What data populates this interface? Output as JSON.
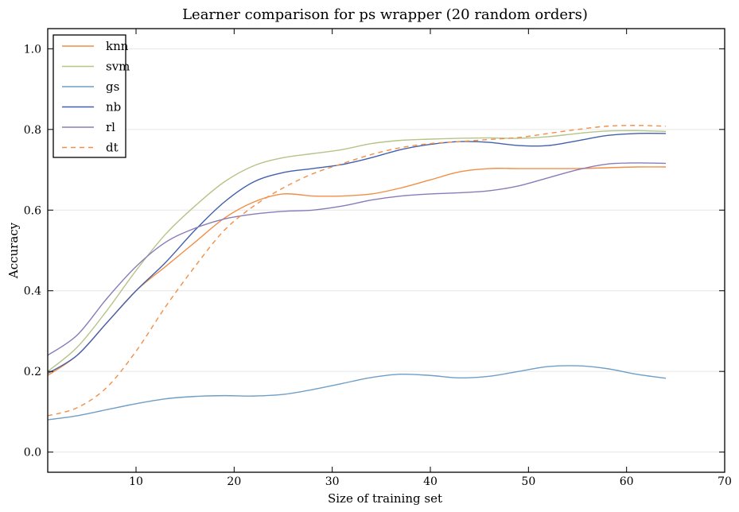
{
  "chart_data": {
    "type": "line",
    "title": "Learner comparison for ps wrapper (20 random orders)",
    "xlabel": "Size of training set",
    "ylabel": "Accuracy",
    "xlim": [
      1,
      70
    ],
    "ylim": [
      -0.05,
      1.05
    ],
    "xticks": [
      10,
      20,
      30,
      40,
      50,
      60,
      70
    ],
    "yticks": [
      0.0,
      0.2,
      0.4,
      0.6,
      0.8,
      1.0
    ],
    "ytick_labels": [
      "0.0",
      "0.2",
      "0.4",
      "0.6",
      "0.8",
      "1.0"
    ],
    "grid": "horizontal",
    "legend_position": "top-left",
    "series": [
      {
        "name": "knn",
        "color": "#f28e45",
        "dash": "solid",
        "x": [
          1,
          4,
          7,
          10,
          13,
          16,
          19,
          22,
          25,
          28,
          31,
          34,
          37,
          40,
          43,
          46,
          49,
          52,
          55,
          58,
          61,
          64
        ],
        "y": [
          0.19,
          0.24,
          0.32,
          0.4,
          0.46,
          0.52,
          0.58,
          0.62,
          0.64,
          0.635,
          0.635,
          0.64,
          0.655,
          0.675,
          0.695,
          0.703,
          0.703,
          0.703,
          0.703,
          0.705,
          0.707,
          0.707
        ]
      },
      {
        "name": "svm",
        "color": "#b5c487",
        "dash": "solid",
        "x": [
          1,
          4,
          7,
          10,
          13,
          16,
          19,
          22,
          25,
          28,
          31,
          34,
          37,
          40,
          43,
          46,
          49,
          52,
          55,
          58,
          61,
          64
        ],
        "y": [
          0.2,
          0.26,
          0.35,
          0.45,
          0.54,
          0.61,
          0.67,
          0.71,
          0.73,
          0.74,
          0.75,
          0.765,
          0.773,
          0.776,
          0.778,
          0.779,
          0.778,
          0.782,
          0.79,
          0.796,
          0.797,
          0.795
        ]
      },
      {
        "name": "gs",
        "color": "#6f9ec6",
        "dash": "solid",
        "x": [
          1,
          4,
          7,
          10,
          13,
          16,
          19,
          22,
          25,
          28,
          31,
          34,
          37,
          40,
          43,
          46,
          49,
          52,
          55,
          58,
          61,
          64
        ],
        "y": [
          0.08,
          0.09,
          0.105,
          0.12,
          0.132,
          0.138,
          0.14,
          0.139,
          0.143,
          0.155,
          0.17,
          0.185,
          0.193,
          0.19,
          0.184,
          0.188,
          0.2,
          0.212,
          0.214,
          0.207,
          0.193,
          0.183
        ]
      },
      {
        "name": "nb",
        "color": "#4160ad",
        "dash": "solid",
        "x": [
          1,
          4,
          7,
          10,
          13,
          16,
          19,
          22,
          25,
          28,
          31,
          34,
          37,
          40,
          43,
          46,
          49,
          52,
          55,
          58,
          61,
          64
        ],
        "y": [
          0.195,
          0.24,
          0.32,
          0.4,
          0.47,
          0.55,
          0.62,
          0.67,
          0.693,
          0.703,
          0.713,
          0.73,
          0.75,
          0.763,
          0.77,
          0.768,
          0.76,
          0.76,
          0.772,
          0.785,
          0.79,
          0.79
        ]
      },
      {
        "name": "rl",
        "color": "#8a7bb8",
        "dash": "solid",
        "x": [
          1,
          4,
          7,
          10,
          13,
          16,
          19,
          22,
          25,
          28,
          31,
          34,
          37,
          40,
          43,
          46,
          49,
          52,
          55,
          58,
          61,
          64
        ],
        "y": [
          0.24,
          0.29,
          0.38,
          0.46,
          0.52,
          0.555,
          0.578,
          0.59,
          0.597,
          0.6,
          0.61,
          0.625,
          0.635,
          0.64,
          0.643,
          0.648,
          0.66,
          0.68,
          0.7,
          0.714,
          0.717,
          0.716
        ]
      },
      {
        "name": "dt",
        "color": "#f28e45",
        "dash": "dashed",
        "x": [
          1,
          4,
          7,
          10,
          13,
          16,
          19,
          22,
          25,
          28,
          31,
          34,
          37,
          40,
          43,
          46,
          49,
          52,
          55,
          58,
          61,
          64
        ],
        "y": [
          0.09,
          0.11,
          0.16,
          0.25,
          0.36,
          0.46,
          0.55,
          0.61,
          0.655,
          0.69,
          0.715,
          0.738,
          0.755,
          0.765,
          0.77,
          0.775,
          0.78,
          0.79,
          0.8,
          0.808,
          0.81,
          0.808
        ]
      }
    ]
  }
}
